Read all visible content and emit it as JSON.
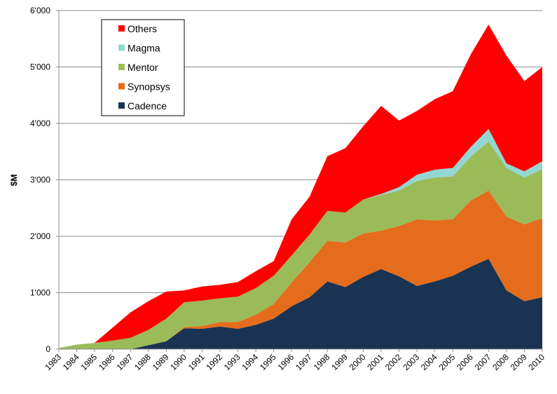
{
  "chart_data": {
    "type": "area",
    "stacked": true,
    "ylabel": "$M",
    "xlabel": "",
    "ylim": [
      0,
      6000
    ],
    "y_ticks": [
      "0",
      "1'000",
      "2'000",
      "3'000",
      "4'000",
      "5'000",
      "6'000"
    ],
    "grid": "horizontal",
    "legend_position": "top-left",
    "categories": [
      "1983",
      "1984",
      "1985",
      "1986",
      "1987",
      "1988",
      "1989",
      "1990",
      "1991",
      "1992",
      "1993",
      "1994",
      "1995",
      "1996",
      "1997",
      "1998",
      "1999",
      "2000",
      "2001",
      "2002",
      "2003",
      "2004",
      "2005",
      "2006",
      "2007",
      "2008",
      "2009",
      "2010"
    ],
    "series": [
      {
        "name": "Cadence",
        "color": "#1a3352",
        "values": [
          0,
          0,
          0,
          0,
          0,
          70,
          140,
          370,
          360,
          400,
          360,
          430,
          540,
          760,
          920,
          1200,
          1100,
          1280,
          1420,
          1290,
          1120,
          1200,
          1300,
          1460,
          1600,
          1040,
          850,
          920
        ]
      },
      {
        "name": "Synopsys",
        "color": "#e46c1c",
        "values": [
          0,
          0,
          0,
          0,
          0,
          0,
          0,
          20,
          50,
          80,
          120,
          180,
          260,
          420,
          620,
          720,
          790,
          770,
          680,
          890,
          1180,
          1080,
          1000,
          1170,
          1210,
          1310,
          1360,
          1400
        ]
      },
      {
        "name": "Mentor",
        "color": "#9bbb59",
        "values": [
          20,
          80,
          110,
          150,
          200,
          270,
          400,
          440,
          450,
          420,
          450,
          470,
          500,
          480,
          490,
          530,
          530,
          600,
          630,
          630,
          680,
          760,
          760,
          780,
          870,
          860,
          830,
          870
        ]
      },
      {
        "name": "Magma",
        "color": "#93d7d2",
        "values": [
          0,
          0,
          0,
          0,
          0,
          0,
          0,
          0,
          0,
          0,
          0,
          0,
          0,
          0,
          0,
          0,
          0,
          0,
          20,
          60,
          110,
          140,
          150,
          170,
          220,
          80,
          110,
          140
        ]
      },
      {
        "name": "Others",
        "color": "#ff0000",
        "values": [
          0,
          0,
          0,
          230,
          450,
          510,
          480,
          210,
          250,
          240,
          260,
          300,
          260,
          640,
          670,
          970,
          1140,
          1300,
          1560,
          1180,
          1130,
          1250,
          1360,
          1640,
          1850,
          1910,
          1600,
          1670
        ]
      }
    ]
  }
}
